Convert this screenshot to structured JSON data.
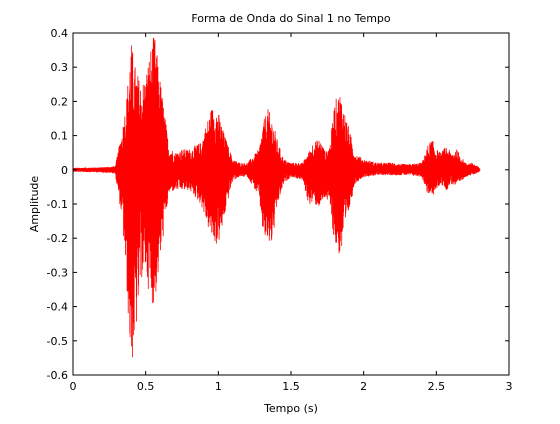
{
  "chart_data": {
    "type": "line",
    "title": "Forma de Onda do Sinal 1 no Tempo",
    "xlabel": "Tempo (s)",
    "ylabel": "Amplitude",
    "xlim": [
      0,
      3
    ],
    "ylim": [
      -0.6,
      0.4
    ],
    "x_ticks": [
      0,
      0.5,
      1,
      1.5,
      2,
      2.5,
      3
    ],
    "x_tick_labels": [
      "0",
      "0.5",
      "1",
      "1.5",
      "2",
      "2.5",
      "3"
    ],
    "y_ticks": [
      0.4,
      0.3,
      0.2,
      0.1,
      0,
      -0.1,
      -0.2,
      -0.3,
      -0.4,
      -0.5,
      -0.6
    ],
    "y_tick_labels": [
      "0.4",
      "0.3",
      "0.2",
      "0.1",
      "0",
      "-0.1",
      "-0.2",
      "-0.3",
      "-0.4",
      "-0.5",
      "-0.6"
    ],
    "grid": false,
    "series_color": "#ff0000",
    "duration": 2.8,
    "envelope": {
      "t": [
        0,
        0.2,
        0.29,
        0.3,
        0.34,
        0.37,
        0.4,
        0.43,
        0.47,
        0.5,
        0.53,
        0.56,
        0.59,
        0.62,
        0.66,
        0.7,
        0.75,
        0.8,
        0.88,
        0.95,
        0.98,
        1.0,
        1.03,
        1.06,
        1.1,
        1.15,
        1.2,
        1.28,
        1.31,
        1.34,
        1.37,
        1.41,
        1.45,
        1.5,
        1.58,
        1.62,
        1.65,
        1.7,
        1.74,
        1.77,
        1.8,
        1.84,
        1.87,
        1.9,
        1.94,
        2.0,
        2.1,
        2.2,
        2.3,
        2.4,
        2.44,
        2.47,
        2.5,
        2.53,
        2.57,
        2.6,
        2.64,
        2.7,
        2.75,
        2.8
      ],
      "upper": [
        0.005,
        0.007,
        0.01,
        0.03,
        0.12,
        0.22,
        0.38,
        0.3,
        0.25,
        0.28,
        0.35,
        0.4,
        0.3,
        0.2,
        0.07,
        0.05,
        0.06,
        0.06,
        0.08,
        0.18,
        0.19,
        0.17,
        0.12,
        0.08,
        0.03,
        0.02,
        0.02,
        0.06,
        0.14,
        0.18,
        0.15,
        0.08,
        0.03,
        0.02,
        0.02,
        0.05,
        0.08,
        0.09,
        0.05,
        0.08,
        0.2,
        0.23,
        0.17,
        0.12,
        0.05,
        0.03,
        0.02,
        0.02,
        0.015,
        0.02,
        0.07,
        0.09,
        0.06,
        0.05,
        0.07,
        0.05,
        0.06,
        0.02,
        0.02,
        0.005
      ],
      "lower": [
        -0.005,
        -0.007,
        -0.01,
        -0.04,
        -0.15,
        -0.35,
        -0.59,
        -0.5,
        -0.32,
        -0.3,
        -0.38,
        -0.4,
        -0.3,
        -0.2,
        -0.07,
        -0.06,
        -0.06,
        -0.06,
        -0.1,
        -0.2,
        -0.22,
        -0.22,
        -0.17,
        -0.1,
        -0.03,
        -0.02,
        -0.02,
        -0.08,
        -0.2,
        -0.22,
        -0.22,
        -0.1,
        -0.04,
        -0.02,
        -0.03,
        -0.1,
        -0.1,
        -0.11,
        -0.08,
        -0.12,
        -0.22,
        -0.26,
        -0.2,
        -0.12,
        -0.04,
        -0.02,
        -0.015,
        -0.015,
        -0.015,
        -0.02,
        -0.07,
        -0.08,
        -0.06,
        -0.04,
        -0.06,
        -0.04,
        -0.05,
        -0.02,
        -0.015,
        -0.005
      ]
    }
  }
}
